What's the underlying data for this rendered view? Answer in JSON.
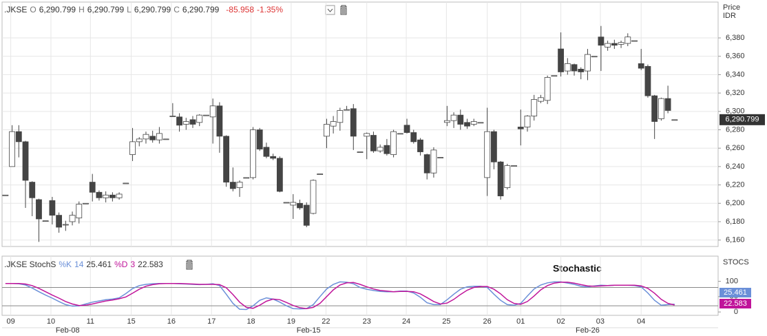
{
  "chart_data": [
    {
      "type": "candlestick",
      "symbol": ".JKSE",
      "header": [
        {
          "label": "O",
          "text": "6,290.799"
        },
        {
          "label": "H",
          "text": "6,290.799"
        },
        {
          "label": "L",
          "text": "6,290.799"
        },
        {
          "label": "C",
          "text": "6,290.799"
        }
      ],
      "change": "-85.958",
      "change_pct": "-1.35%",
      "y_axis_title": [
        "Price",
        "IDR"
      ],
      "last_price_label": "6,290.799",
      "up_color": "#ffffff",
      "down_color": "#444444",
      "outline_color": "#444444",
      "grid": true,
      "open": [
        6209,
        6240,
        6278,
        6267,
        6223,
        6204,
        6181,
        6203,
        6187,
        6177,
        6180,
        6184,
        6200,
        6223,
        6212,
        6206,
        6209,
        6206,
        6222,
        6253,
        6267,
        6270,
        6273,
        6269,
        6270,
        6295,
        6294,
        6286,
        6291,
        6288,
        6296,
        6294,
        6306,
        6273,
        6223,
        6217,
        6228,
        6228,
        6280,
        6261,
        6251,
        6249,
        6201,
        6198,
        6200,
        6198,
        6189,
        6232,
        6273,
        6284,
        6288,
        6302,
        6303,
        6256,
        6273,
        6274,
        6257,
        6263,
        6253,
        6276,
        6285,
        6277,
        6269,
        6253,
        6233,
        6250,
        6288,
        6290,
        6296,
        6288,
        6286,
        6288,
        6228,
        6278,
        6245,
        6217,
        6241,
        6283,
        6283,
        6295,
        6311,
        6312,
        6339,
        6368,
        6344,
        6351,
        6346,
        6344,
        6360,
        6381,
        6370,
        6374,
        6373,
        6374,
        6377,
        6352,
        6349,
        6317,
        6292,
        6314,
        6291
      ],
      "high": [
        6209,
        6285,
        6285,
        6268,
        6224,
        6205,
        6181,
        6207,
        6190,
        6181,
        6191,
        6202,
        6200,
        6232,
        6214,
        6213,
        6212,
        6212,
        6222,
        6282,
        6272,
        6278,
        6279,
        6283,
        6270,
        6309,
        6298,
        6293,
        6295,
        6297,
        6296,
        6314,
        6310,
        6274,
        6239,
        6225,
        6228,
        6283,
        6282,
        6266,
        6254,
        6251,
        6201,
        6210,
        6204,
        6201,
        6226,
        6232,
        6292,
        6295,
        6304,
        6306,
        6308,
        6256,
        6277,
        6278,
        6264,
        6270,
        6280,
        6276,
        6292,
        6280,
        6271,
        6254,
        6261,
        6250,
        6306,
        6299,
        6302,
        6292,
        6292,
        6288,
        6304,
        6280,
        6246,
        6243,
        6241,
        6302,
        6296,
        6318,
        6318,
        6339,
        6339,
        6386,
        6358,
        6352,
        6348,
        6368,
        6360,
        6393,
        6377,
        6378,
        6377,
        6385,
        6377,
        6368,
        6351,
        6318,
        6315,
        6328,
        6291
      ],
      "low": [
        6209,
        6240,
        6250,
        6195,
        6186,
        6158,
        6181,
        6177,
        6168,
        6170,
        6176,
        6178,
        6200,
        6202,
        6203,
        6201,
        6202,
        6204,
        6222,
        6246,
        6262,
        6265,
        6266,
        6265,
        6270,
        6294,
        6278,
        6280,
        6282,
        6284,
        6296,
        6265,
        6255,
        6218,
        6213,
        6207,
        6228,
        6226,
        6257,
        6249,
        6247,
        6212,
        6201,
        6183,
        6193,
        6174,
        6188,
        6232,
        6260,
        6276,
        6279,
        6302,
        6258,
        6256,
        6248,
        6255,
        6255,
        6252,
        6250,
        6276,
        6276,
        6265,
        6252,
        6226,
        6228,
        6250,
        6284,
        6282,
        6280,
        6281,
        6284,
        6288,
        6208,
        6237,
        6204,
        6215,
        6241,
        6263,
        6278,
        6290,
        6309,
        6308,
        6339,
        6338,
        6340,
        6339,
        6335,
        6334,
        6360,
        6344,
        6366,
        6368,
        6369,
        6371,
        6377,
        6345,
        6315,
        6270,
        6290,
        6298,
        6291
      ],
      "close": [
        6209,
        6278,
        6267,
        6225,
        6206,
        6183,
        6181,
        6187,
        6174,
        6177,
        6187,
        6199,
        6200,
        6212,
        6206,
        6209,
        6206,
        6210,
        6222,
        6267,
        6270,
        6275,
        6269,
        6276,
        6270,
        6295,
        6285,
        6289,
        6286,
        6296,
        6296,
        6306,
        6273,
        6223,
        6216,
        6223,
        6228,
        6280,
        6259,
        6251,
        6249,
        6213,
        6201,
        6201,
        6195,
        6176,
        6225,
        6232,
        6286,
        6289,
        6301,
        6302,
        6273,
        6256,
        6276,
        6257,
        6261,
        6254,
        6278,
        6276,
        6277,
        6267,
        6256,
        6233,
        6258,
        6250,
        6290,
        6296,
        6286,
        6284,
        6289,
        6288,
        6278,
        6245,
        6208,
        6241,
        6241,
        6281,
        6295,
        6313,
        6315,
        6337,
        6339,
        6343,
        6352,
        6344,
        6343,
        6362,
        6360,
        6372,
        6374,
        6372,
        6375,
        6381,
        6377,
        6347,
        6317,
        6289,
        6314,
        6301,
        6291
      ],
      "ylim": [
        6153,
        6419
      ],
      "yticks": [
        {
          "value": 6160,
          "label": "6,160"
        },
        {
          "value": 6180,
          "label": "6,180"
        },
        {
          "value": 6200,
          "label": "6,200"
        },
        {
          "value": 6220,
          "label": "6,220"
        },
        {
          "value": 6240,
          "label": "6,240"
        },
        {
          "value": 6260,
          "label": "6,260"
        },
        {
          "value": 6280,
          "label": "6,280"
        },
        {
          "value": 6300,
          "label": "6,300"
        },
        {
          "value": 6320,
          "label": "6,320"
        },
        {
          "value": 6340,
          "label": "6,340"
        },
        {
          "value": 6360,
          "label": "6,360"
        },
        {
          "value": 6380,
          "label": "6,380"
        }
      ],
      "xlim": [
        -0.5,
        106.5
      ],
      "xticks": [
        {
          "value": 0.8,
          "label": "09"
        },
        {
          "value": 6.8,
          "label": "10"
        },
        {
          "value": 12.7,
          "label": "11"
        },
        {
          "value": 18.8,
          "label": "15"
        },
        {
          "value": 24.8,
          "label": "16"
        },
        {
          "value": 30.8,
          "label": "17"
        },
        {
          "value": 36.7,
          "label": "18"
        },
        {
          "value": 42.7,
          "label": "19"
        },
        {
          "value": 47.9,
          "label": "22"
        },
        {
          "value": 54,
          "label": "23"
        },
        {
          "value": 59.9,
          "label": "24"
        },
        {
          "value": 65.9,
          "label": "25"
        },
        {
          "value": 72,
          "label": "26"
        },
        {
          "value": 77,
          "label": "01"
        },
        {
          "value": 83,
          "label": "02"
        },
        {
          "value": 88.9,
          "label": "03"
        },
        {
          "value": 95,
          "label": "04"
        }
      ],
      "month_ticks": [
        {
          "value": 9.3,
          "label": "Feb-08"
        },
        {
          "value": 45.3,
          "label": "Feb-15"
        },
        {
          "value": 87,
          "label": "Feb-26"
        }
      ]
    },
    {
      "type": "line",
      "title": ".JKSE StochS",
      "annotation": "Stochastic",
      "y_axis_title": "STOCS",
      "ylim": [
        -11,
        182
      ],
      "yticks": [
        0,
        50,
        100
      ],
      "levels": [
        20,
        80
      ],
      "series": [
        {
          "name": "%K",
          "period": 14,
          "color": "#6a8fd8",
          "values": [
            93,
            93,
            92,
            88,
            78,
            66,
            55,
            45,
            34,
            24,
            19,
            20,
            26,
            32,
            36,
            40,
            42,
            46,
            60,
            76,
            86,
            90,
            92,
            93,
            93,
            93,
            92,
            91,
            90,
            89,
            90,
            92,
            86,
            58,
            28,
            9,
            8,
            20,
            38,
            46,
            42,
            32,
            20,
            11,
            10,
            11,
            24,
            50,
            75,
            90,
            98,
            97,
            92,
            80,
            74,
            70,
            67,
            66,
            66,
            68,
            68,
            62,
            48,
            30,
            24,
            24,
            40,
            58,
            74,
            82,
            84,
            84,
            80,
            58,
            38,
            24,
            22,
            28,
            52,
            75,
            88,
            95,
            98,
            98,
            94,
            90,
            84,
            82,
            85,
            87,
            86,
            87,
            87,
            87,
            86,
            82,
            62,
            38,
            22,
            24,
            25.461
          ]
        },
        {
          "name": "%D",
          "period": 3,
          "color": "#c0149a",
          "values": [
            93,
            93,
            93,
            91,
            86,
            77,
            66,
            55,
            45,
            34,
            26,
            21,
            22,
            26,
            31,
            36,
            39,
            43,
            49,
            61,
            74,
            84,
            89,
            92,
            93,
            93,
            93,
            92,
            91,
            90,
            90,
            90,
            89,
            79,
            57,
            32,
            15,
            12,
            22,
            35,
            42,
            40,
            31,
            21,
            14,
            11,
            15,
            28,
            50,
            72,
            88,
            95,
            96,
            90,
            82,
            75,
            70,
            68,
            66,
            67,
            67,
            66,
            59,
            47,
            34,
            26,
            29,
            41,
            57,
            71,
            80,
            83,
            83,
            74,
            59,
            40,
            28,
            25,
            34,
            52,
            72,
            86,
            94,
            97,
            97,
            94,
            89,
            85,
            84,
            85,
            86,
            87,
            87,
            87,
            87,
            85,
            77,
            61,
            41,
            28,
            22.583
          ]
        }
      ]
    }
  ]
}
